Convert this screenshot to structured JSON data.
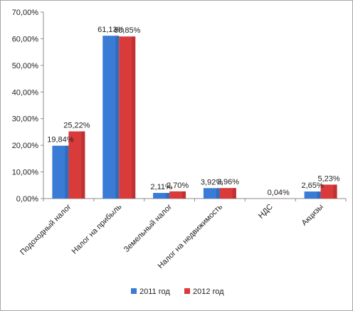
{
  "chart_data": {
    "type": "bar",
    "categories": [
      "Подоходный налог",
      "Налог на прибыль",
      "Земельный налог",
      "Налог на недвижимость",
      "НДС",
      "Акцизы"
    ],
    "series": [
      {
        "name": "2011 год",
        "color": "#3a7bd5",
        "values": [
          19.84,
          61.13,
          2.11,
          3.92,
          null,
          2.65
        ],
        "labels": [
          "19,84%",
          "61,13%",
          "2,11%",
          "3,92%",
          "",
          "2,65%"
        ]
      },
      {
        "name": "2012 год",
        "color": "#d93a3a",
        "values": [
          25.22,
          60.85,
          2.7,
          3.96,
          0.04,
          5.23
        ],
        "labels": [
          "25,22%",
          "60,85%",
          "2,70%",
          "3,96%",
          "0,04%",
          "5,23%"
        ]
      }
    ],
    "ylim": [
      0,
      70
    ],
    "yticks": [
      0,
      10,
      20,
      30,
      40,
      50,
      60,
      70
    ],
    "ytick_labels": [
      "0,00%",
      "10,00%",
      "20,00%",
      "30,00%",
      "40,00%",
      "50,00%",
      "60,00%",
      "70,00%"
    ],
    "grid": false,
    "legend_position": "bottom",
    "title": "",
    "xlabel": "",
    "ylabel": ""
  }
}
